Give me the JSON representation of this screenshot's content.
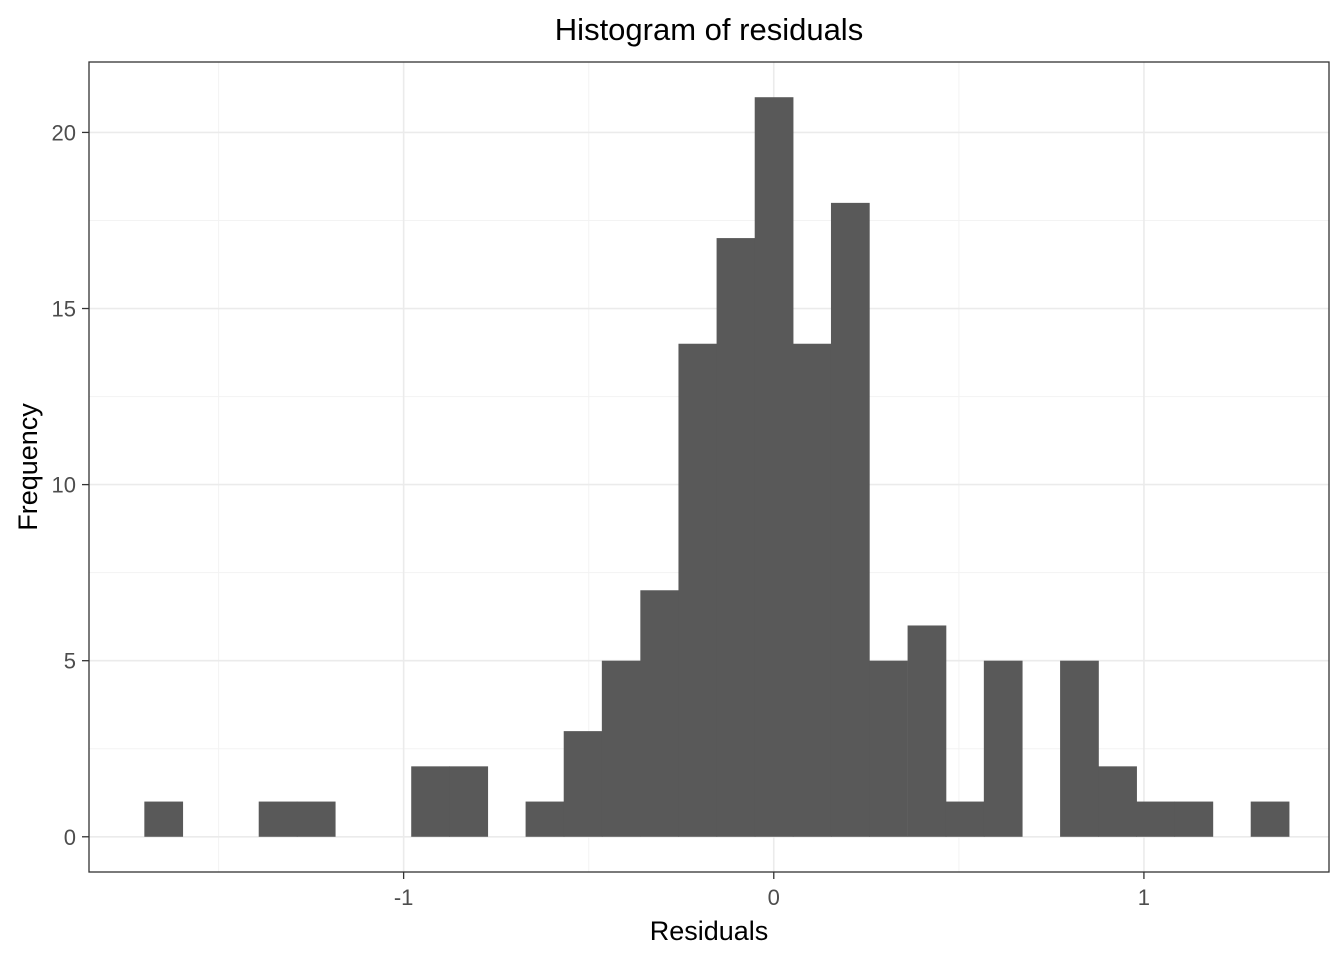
{
  "chart_data": {
    "type": "bar",
    "title": "Histogram of residuals",
    "xlabel": "Residuals",
    "ylabel": "Frequency",
    "xlim": [
      -1.85,
      1.5
    ],
    "ylim": [
      -1.0,
      22.0
    ],
    "x_ticks": [
      -1,
      0,
      1
    ],
    "x_tick_labels": [
      "-1",
      "0",
      "1"
    ],
    "y_ticks": [
      0,
      5,
      10,
      15,
      20
    ],
    "y_tick_labels": [
      "0",
      "5",
      "10",
      "15",
      "20"
    ],
    "grid": true,
    "bin_width": 0.103,
    "bin_centers": [
      -1.649,
      -1.34,
      -1.237,
      -0.928,
      -0.825,
      -0.619,
      -0.516,
      -0.413,
      -0.309,
      -0.206,
      -0.103,
      0.0,
      0.103,
      0.206,
      0.309,
      0.413,
      0.516,
      0.619,
      0.825,
      0.928,
      1.031,
      1.134,
      1.34
    ],
    "values": [
      1,
      1,
      1,
      2,
      2,
      1,
      3,
      5,
      7,
      14,
      17,
      21,
      14,
      18,
      5,
      6,
      1,
      5,
      5,
      2,
      1,
      1,
      1
    ],
    "colors": {
      "bar": "#595959",
      "grid_major": "#ebebeb",
      "grid_minor": "#f3f3f3",
      "panel_border": "#333333"
    }
  }
}
